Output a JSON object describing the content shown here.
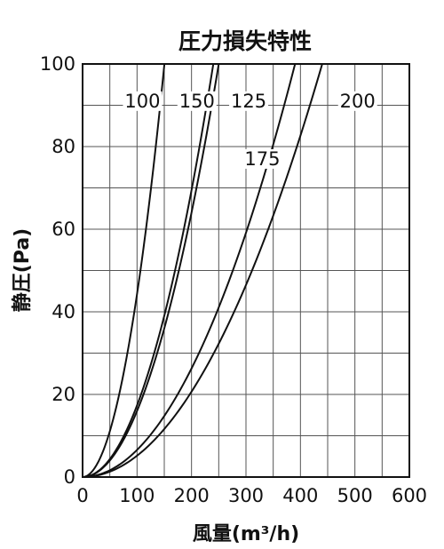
{
  "chart_data": {
    "type": "line",
    "title": "圧力損失特性",
    "xlabel": "風量(m³/h)",
    "ylabel": "静圧(Pa)",
    "xlim": [
      0,
      600
    ],
    "ylim": [
      0,
      100
    ],
    "xticks": [
      "0",
      "100",
      "200",
      "300",
      "400",
      "500",
      "600"
    ],
    "yticks": [
      "0",
      "20",
      "40",
      "60",
      "80",
      "100"
    ],
    "grid": true,
    "minor_grid_step": {
      "x": 50,
      "y": 10
    },
    "series": [
      {
        "name": "100",
        "x": [
          0,
          25,
          50,
          75,
          100,
          125,
          150
        ],
        "values": [
          0,
          2.8,
          11,
          25,
          44,
          69,
          100
        ]
      },
      {
        "name": "150",
        "x": [
          0,
          50,
          100,
          150,
          200,
          250
        ],
        "values": [
          0,
          4,
          16,
          36,
          64,
          100
        ]
      },
      {
        "name": "125",
        "x": [
          0,
          50,
          100,
          150,
          200,
          240
        ],
        "values": [
          0,
          4.3,
          17.4,
          39,
          69.4,
          100
        ]
      },
      {
        "name": "175",
        "x": [
          0,
          50,
          100,
          150,
          200,
          250,
          300,
          350,
          390
        ],
        "values": [
          0,
          1.6,
          6.6,
          14.8,
          26.3,
          41,
          59,
          80.5,
          100
        ]
      },
      {
        "name": "200",
        "x": [
          0,
          50,
          100,
          150,
          200,
          250,
          300,
          350,
          400,
          440
        ],
        "values": [
          0,
          1.3,
          5.2,
          11.6,
          20.7,
          32.3,
          46.5,
          63.3,
          82.6,
          100
        ]
      }
    ]
  }
}
